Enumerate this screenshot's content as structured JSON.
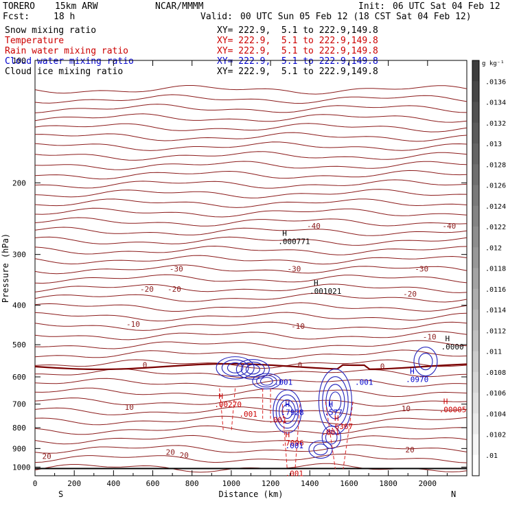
{
  "header": {
    "model_name": "TORERO",
    "resolution": "15km ARW",
    "producer": "NCAR/MMMM",
    "init_label": "Init:",
    "init_value": "06 UTC Sat 04 Feb 12",
    "fcst_label": "Fcst:",
    "fcst_value": "18 h",
    "valid_label": "Valid:",
    "valid_value": "00 UTC Sun 05 Feb 12 (18 CST Sat 04 Feb 12)"
  },
  "legend": [
    {
      "name": "Snow mixing ratio",
      "color": "#000000",
      "xy": "XY= 222.9,  5.1 to 222.9,149.8"
    },
    {
      "name": "Temperature",
      "color": "#cc0000",
      "xy": "XY= 222.9,  5.1 to 222.9,149.8"
    },
    {
      "name": "Rain water mixing ratio",
      "color": "#cc0000",
      "xy": "XY= 222.9,  5.1 to 222.9,149.8"
    },
    {
      "name": "Cloud water mixing ratio",
      "color": "#0000cc",
      "xy": "XY= 222.9,  5.1 to 222.9,149.8"
    },
    {
      "name": "Cloud ice mixing ratio",
      "color": "#000000",
      "xy": "XY= 222.9,  5.1 to 222.9,149.8"
    }
  ],
  "chart_data": {
    "type": "contour",
    "xlabel": "Distance (km)",
    "ylabel": "Pressure (hPa)",
    "x_ticks": [
      0,
      200,
      400,
      600,
      800,
      1000,
      1200,
      1400,
      1600,
      1800,
      2000
    ],
    "y_ticks": [
      200,
      300,
      400,
      500,
      600,
      700,
      800,
      900,
      1000
    ],
    "y_top_label": "100",
    "xlim": [
      0,
      2200
    ],
    "ylim": [
      1050,
      100
    ],
    "y_scale": "log",
    "left_end_label": "S",
    "right_end_label": "N",
    "colorbar": {
      "unit": "g kg⁻¹",
      "ticks": [
        ".0136",
        ".0134",
        ".0132",
        ".013",
        ".0128",
        ".0126",
        ".0124",
        ".0122",
        ".012",
        ".0118",
        ".0116",
        ".0114",
        ".0112",
        ".011",
        ".0108",
        ".0106",
        ".0104",
        ".0102",
        ".01"
      ]
    },
    "temperature_contours": {
      "color": "#8b1a1a",
      "zero_line_color": "#7a0000",
      "interval": 5,
      "labels": [
        {
          "text": "-40",
          "x": 1420,
          "p": 255
        },
        {
          "text": "-40",
          "x": 2110,
          "p": 255
        },
        {
          "text": "-30",
          "x": 720,
          "p": 325
        },
        {
          "text": "-30",
          "x": 1320,
          "p": 325
        },
        {
          "text": "-30",
          "x": 1970,
          "p": 325
        },
        {
          "text": "-20",
          "x": 570,
          "p": 365
        },
        {
          "text": "-20",
          "x": 710,
          "p": 365
        },
        {
          "text": "-20",
          "x": 1910,
          "p": 375
        },
        {
          "text": "-10",
          "x": 500,
          "p": 445
        },
        {
          "text": "-10",
          "x": 1340,
          "p": 450
        },
        {
          "text": "-10",
          "x": 2010,
          "p": 478
        },
        {
          "text": "0",
          "x": 560,
          "p": 560
        },
        {
          "text": "0",
          "x": 1350,
          "p": 560
        },
        {
          "text": "0",
          "x": 1770,
          "p": 565
        },
        {
          "text": "10",
          "x": 480,
          "p": 712
        },
        {
          "text": "10",
          "x": 1890,
          "p": 718
        },
        {
          "text": "20",
          "x": 690,
          "p": 918
        },
        {
          "text": "20",
          "x": 760,
          "p": 935
        },
        {
          "text": "20",
          "x": 1910,
          "p": 905
        },
        {
          "text": "20",
          "x": 60,
          "p": 940
        }
      ]
    },
    "extrema_markers": [
      {
        "mark": "H",
        "value": ".000771",
        "x": 1260,
        "p": 270,
        "color": "#000000"
      },
      {
        "mark": "H",
        "value": ".001021",
        "x": 1420,
        "p": 358,
        "color": "#000000"
      },
      {
        "mark": "H",
        "value": ".0000",
        "x": 2090,
        "p": 490,
        "color": "#000000"
      },
      {
        "mark": "H",
        "value": ".0970",
        "x": 1910,
        "p": 590,
        "color": "#0000cc"
      },
      {
        "mark": "H",
        "value": ".00270",
        "x": 935,
        "p": 680,
        "color": "#cc0000"
      },
      {
        "mark": "H",
        "value": ".7928",
        "x": 1275,
        "p": 710,
        "color": "#0000cc"
      },
      {
        "mark": "H",
        "value": ".577",
        "x": 1495,
        "p": 710,
        "color": "#0000cc"
      },
      {
        "mark": "H",
        "value": ".00005",
        "x": 2080,
        "p": 700,
        "color": "#cc0000"
      },
      {
        "mark": "H",
        "value": ".6367",
        "x": 1525,
        "p": 770,
        "color": "#cc0000"
      },
      {
        "mark": "H",
        "value": ".7096",
        "x": 1275,
        "p": 845,
        "color": "#cc0000"
      }
    ],
    "contour_labels": [
      {
        "text": ".001",
        "x": 1220,
        "p": 618,
        "color": "#0000cc"
      },
      {
        "text": ".001",
        "x": 1630,
        "p": 618,
        "color": "#0000cc"
      },
      {
        "text": ".001",
        "x": 1040,
        "p": 740,
        "color": "#cc0000"
      },
      {
        "text": ".001",
        "x": 1190,
        "p": 765,
        "color": "#cc0000"
      },
      {
        "text": ".001",
        "x": 1460,
        "p": 820,
        "color": "#cc0000"
      },
      {
        "text": ".001",
        "x": 1275,
        "p": 885,
        "color": "#0000cc"
      },
      {
        "text": ".001",
        "x": 1275,
        "p": 1035,
        "color": "#cc0000"
      }
    ]
  }
}
